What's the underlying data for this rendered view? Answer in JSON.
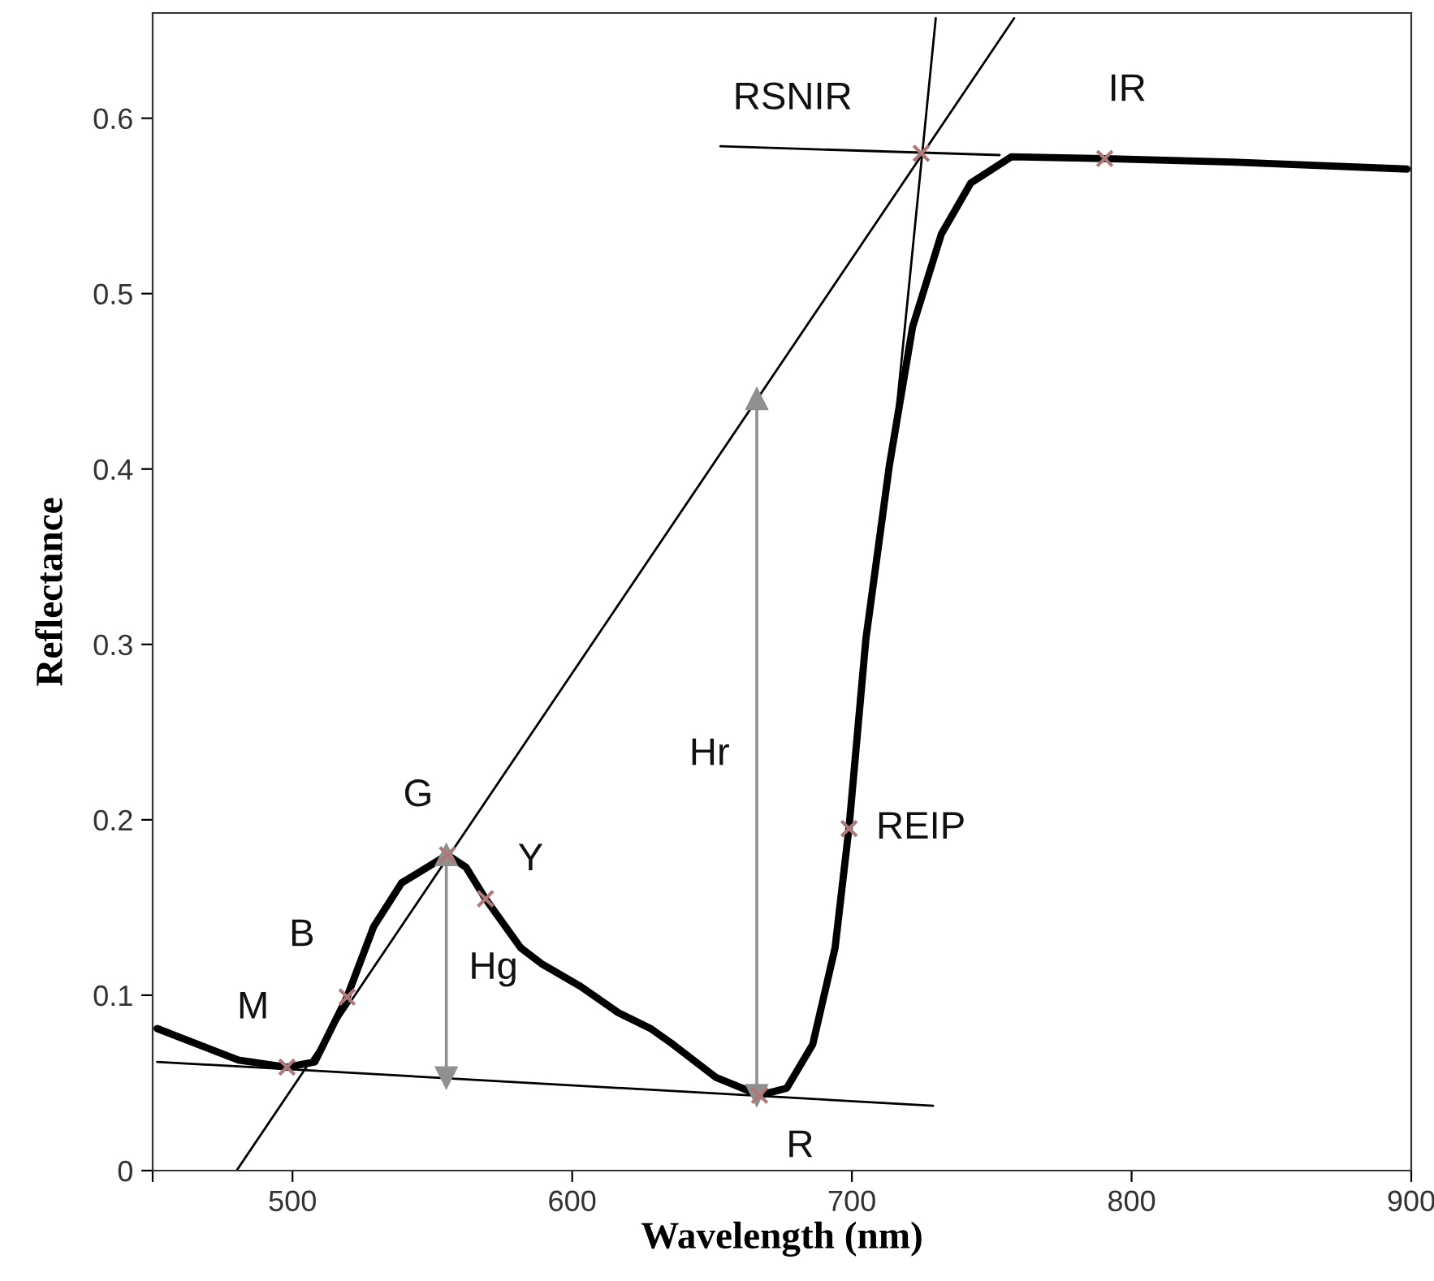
{
  "chart_data": {
    "type": "line",
    "xlabel": "Wavelength (nm)",
    "ylabel": "Reflectance",
    "xlim": [
      450,
      900
    ],
    "xticks": [
      {
        "value": 450,
        "label": null
      },
      500,
      600,
      700,
      800,
      900
    ],
    "ylim": [
      0,
      0.66
    ],
    "yticks": [
      0,
      0.1,
      0.2,
      0.3,
      0.4,
      0.5,
      0.6
    ],
    "grid": false,
    "legend": false,
    "series": [
      {
        "color": "#000000",
        "x": [
          451.6,
          480.7,
          498,
          508,
          519.5,
          529,
          539,
          555.4,
          562,
          569,
          581.6,
          589,
          603,
          616.5,
          628,
          636,
          651.5,
          667,
          676.7,
          686,
          694,
          699,
          705,
          713.4,
          721.7,
          732,
          742.5,
          757,
          790.4,
          836,
          898.5
        ],
        "values": [
          0.081,
          0.063,
          0.059,
          0.062,
          0.099,
          0.139,
          0.164,
          0.18,
          0.173,
          0.155,
          0.127,
          0.118,
          0.105,
          0.09,
          0.081,
          0.072,
          0.053,
          0.043,
          0.047,
          0.072,
          0.127,
          0.196,
          0.303,
          0.402,
          0.481,
          0.534,
          0.563,
          0.578,
          0.577,
          0.575,
          0.571
        ]
      },
      {
        "type": "line",
        "color": "#000000",
        "x": [
          451.6,
          729
        ],
        "values": [
          0.062,
          0.037
        ]
      },
      {
        "type": "line",
        "color": "#000000",
        "x": [
          480,
          758
        ],
        "values": [
          0.0,
          0.657
        ]
      },
      {
        "type": "line",
        "color": "#000000",
        "x": [
          714.5,
          730
        ],
        "values": [
          0.41,
          0.657
        ]
      },
      {
        "type": "line",
        "color": "#000000",
        "x": [
          653,
          752.8
        ],
        "values": [
          0.584,
          0.579
        ]
      },
      {
        "type": "line",
        "color": "#909090",
        "marker": "triangle",
        "x": [
          555,
          555
        ],
        "values": [
          0.053,
          0.18
        ]
      },
      {
        "type": "line",
        "color": "#909090",
        "marker": "triangle",
        "x": [
          666,
          666
        ],
        "values": [
          0.043,
          0.44
        ]
      },
      {
        "type": "scatter",
        "color": "#b07878",
        "marker": "cross",
        "x": [
          498,
          519.5,
          555.4,
          569,
          667,
          699,
          790.4,
          724.8
        ],
        "values": [
          0.059,
          0.099,
          0.18,
          0.155,
          0.043,
          0.195,
          0.577,
          0.58
        ]
      }
    ],
    "annotations": [
      {
        "text": "M",
        "x": 498,
        "y": 0.059
      },
      {
        "text": "B",
        "x": 519.5,
        "y": 0.099
      },
      {
        "text": "G",
        "x": 555.4,
        "y": 0.18
      },
      {
        "text": "Y",
        "x": 569,
        "y": 0.155
      },
      {
        "text": "Hg",
        "x": 555,
        "y": 0.115
      },
      {
        "text": "R",
        "x": 667,
        "y": 0.043
      },
      {
        "text": "REIP",
        "x": 699,
        "y": 0.195
      },
      {
        "text": "Hr",
        "x": 666,
        "y": 0.237
      },
      {
        "text": "RSNIR",
        "x": 724.8,
        "y": 0.58
      },
      {
        "text": "IR",
        "x": 790.4,
        "y": 0.577
      }
    ]
  }
}
